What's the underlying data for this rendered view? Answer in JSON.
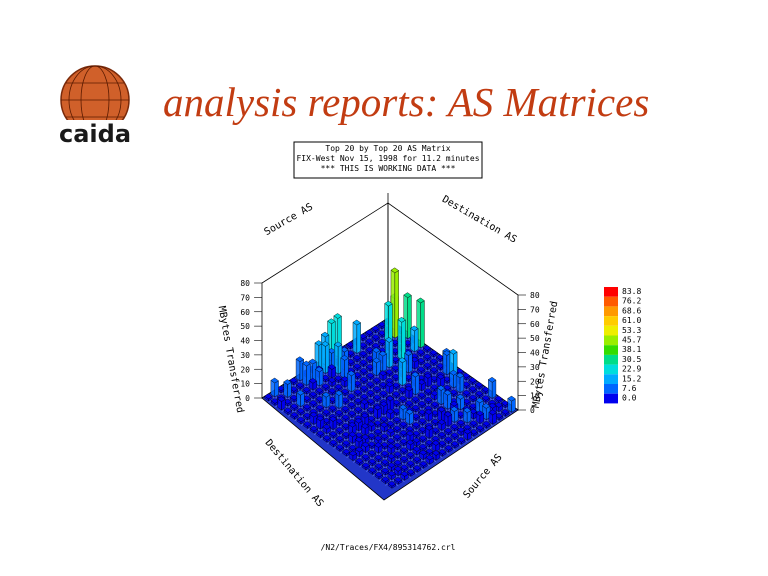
{
  "header": {
    "logo": "caida",
    "title": "analysis reports: AS Matrices"
  },
  "plot": {
    "title_lines": [
      "Top 20 by Top 20 AS Matrix",
      "FIX-West Nov 15, 1998 for 11.2 minutes",
      "*** THIS IS WORKING DATA ***"
    ],
    "axis_labels": {
      "source_top": "Source AS",
      "destination_top": "Destination AS",
      "destination_bottom": "Destination AS",
      "source_bottom": "Source AS",
      "z_left": "MBytes Transferred",
      "z_right": "MBytes Transferred"
    },
    "z_ticks": [
      "0",
      "10",
      "20",
      "30",
      "40",
      "50",
      "60",
      "70",
      "80"
    ]
  },
  "legend": {
    "items": [
      {
        "label": "83.8",
        "color": "#ff0000"
      },
      {
        "label": "76.2",
        "color": "#ff5a00"
      },
      {
        "label": "68.6",
        "color": "#ff9900"
      },
      {
        "label": "61.0",
        "color": "#ffcc00"
      },
      {
        "label": "53.3",
        "color": "#eeee00"
      },
      {
        "label": "45.7",
        "color": "#99ee00"
      },
      {
        "label": "38.1",
        "color": "#33dd00"
      },
      {
        "label": "30.5",
        "color": "#00dd88"
      },
      {
        "label": "22.9",
        "color": "#00dddd"
      },
      {
        "label": "15.2",
        "color": "#00aaff"
      },
      {
        "label": "7.6",
        "color": "#0066ff"
      },
      {
        "label": "0.0",
        "color": "#0000ee"
      }
    ]
  },
  "footer": "/N2/Traces/FX4/895314762.crl"
}
